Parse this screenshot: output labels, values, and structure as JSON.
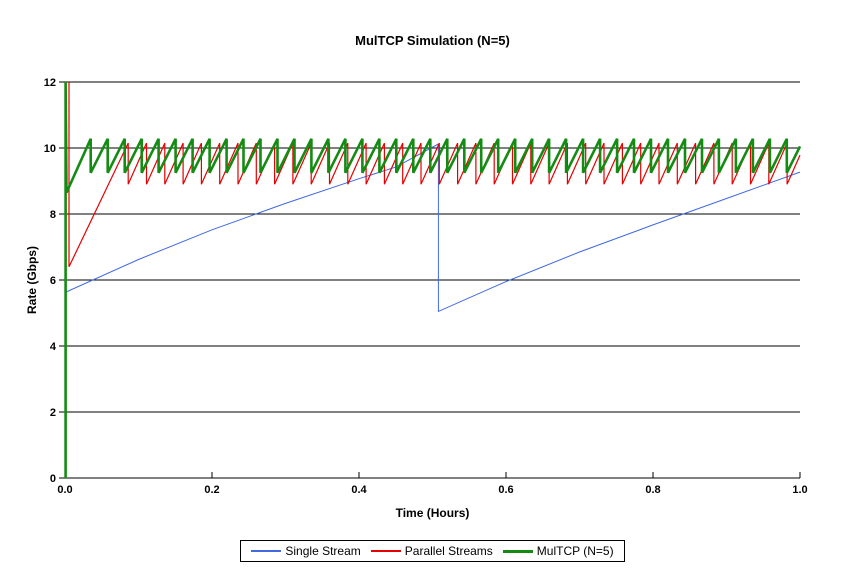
{
  "chart_data": {
    "type": "line",
    "title": "MulTCP Simulation (N=5)",
    "xlabel": "Time (Hours)",
    "ylabel": "Rate (Gbps)",
    "xlim": [
      0,
      1.0
    ],
    "ylim": [
      0,
      12
    ],
    "x_ticks": [
      "0.0",
      "0.2",
      "0.4",
      "0.6",
      "0.8",
      "1.0"
    ],
    "y_ticks": [
      "0",
      "2",
      "4",
      "6",
      "8",
      "10",
      "12"
    ],
    "grid": "horizontal",
    "grid_color": "#000000",
    "background": "#ffffff",
    "legend_position": "bottom-center",
    "series": [
      {
        "id": "single-stream",
        "name": "Single Stream",
        "color": "#4169e1",
        "width": 1,
        "points": [
          [
            0,
            5.62
          ],
          [
            0.1,
            6.62
          ],
          [
            0.2,
            7.52
          ],
          [
            0.3,
            8.32
          ],
          [
            0.4,
            9.07
          ],
          [
            0.45,
            9.42
          ],
          [
            0.508,
            10.12
          ],
          [
            0.508,
            5.05
          ],
          [
            0.6,
            5.95
          ],
          [
            0.7,
            6.85
          ],
          [
            0.8,
            7.67
          ],
          [
            0.9,
            8.47
          ],
          [
            1.0,
            9.27
          ]
        ]
      },
      {
        "id": "parallel-streams",
        "name": "Parallel Streams",
        "color": "#e60000",
        "width": 1.2,
        "lead_points": [
          [
            0.0055,
            12
          ],
          [
            0.0055,
            6.4
          ],
          [
            0.086,
            10.15
          ]
        ],
        "sawtooth": {
          "min": 8.9,
          "max": 10.15,
          "period": 0.0249,
          "until": 1.0
        }
      },
      {
        "id": "multcp-n5",
        "name": "MulTCP (N=5)",
        "color": "#148c14",
        "width": 2.6,
        "lead_points": [
          [
            0.0008,
            0
          ],
          [
            0.0008,
            12
          ],
          [
            0.002,
            8.65
          ],
          [
            0.035,
            10.28
          ]
        ],
        "sawtooth": {
          "min": 9.25,
          "max": 10.28,
          "period": 0.0231,
          "until": 1.0
        }
      }
    ]
  }
}
